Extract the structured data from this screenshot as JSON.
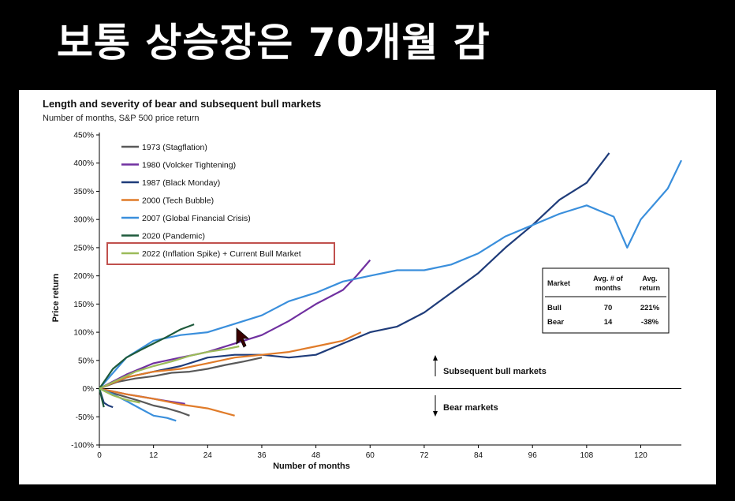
{
  "headline": "보통 상승장은 70개월 감",
  "chart_data": {
    "type": "line",
    "title": "Length and severity of bear and subsequent bull markets",
    "subtitle": "Number of months, S&P 500 price return",
    "xlabel": "Number of months",
    "ylabel": "Price return",
    "xlim": [
      0,
      129
    ],
    "ylim": [
      -100,
      450
    ],
    "xticks": [
      0,
      12,
      24,
      36,
      48,
      60,
      72,
      84,
      96,
      108,
      120
    ],
    "yticks": [
      -100,
      -50,
      0,
      50,
      100,
      150,
      200,
      250,
      300,
      350,
      400,
      450
    ],
    "ytick_labels": [
      "-100%",
      "-50%",
      "0%",
      "50%",
      "100%",
      "150%",
      "200%",
      "250%",
      "300%",
      "350%",
      "400%",
      "450%"
    ],
    "legend_position": "top-left",
    "series": [
      {
        "name": "1973 (Stagflation)",
        "color": "#595959",
        "bear": {
          "x": [
            0,
            3,
            6,
            9,
            12,
            15,
            18,
            20
          ],
          "y": [
            0,
            -8,
            -15,
            -22,
            -30,
            -35,
            -42,
            -48
          ]
        },
        "bull": {
          "x": [
            0,
            4,
            8,
            12,
            16,
            20,
            24,
            28,
            32,
            36
          ],
          "y": [
            0,
            12,
            18,
            22,
            28,
            30,
            35,
            42,
            48,
            55
          ]
        }
      },
      {
        "name": "1980 (Volcker Tightening)",
        "color": "#7030a0",
        "bear": {
          "x": [
            0,
            3,
            6,
            9,
            12,
            15,
            19
          ],
          "y": [
            0,
            -5,
            -10,
            -14,
            -18,
            -22,
            -27
          ]
        },
        "bull": {
          "x": [
            0,
            6,
            12,
            18,
            24,
            30,
            36,
            42,
            48,
            54,
            57,
            60
          ],
          "y": [
            0,
            25,
            45,
            55,
            65,
            80,
            95,
            120,
            150,
            175,
            200,
            228
          ]
        }
      },
      {
        "name": "1987 (Black Monday)",
        "color": "#1f3c7a",
        "bear": {
          "x": [
            0,
            1,
            2,
            3
          ],
          "y": [
            0,
            -25,
            -30,
            -33
          ]
        },
        "bull": {
          "x": [
            0,
            6,
            12,
            18,
            24,
            30,
            36,
            42,
            48,
            54,
            60,
            66,
            72,
            78,
            84,
            90,
            96,
            102,
            108,
            113
          ],
          "y": [
            0,
            20,
            30,
            40,
            55,
            60,
            60,
            55,
            60,
            80,
            100,
            110,
            135,
            170,
            205,
            250,
            290,
            335,
            365,
            418
          ]
        }
      },
      {
        "name": "2000 (Tech Bubble)",
        "color": "#e07b29",
        "bear": {
          "x": [
            0,
            6,
            12,
            18,
            24,
            30
          ],
          "y": [
            0,
            -10,
            -18,
            -28,
            -35,
            -48
          ]
        },
        "bull": {
          "x": [
            0,
            6,
            12,
            18,
            24,
            30,
            36,
            42,
            48,
            54,
            58
          ],
          "y": [
            0,
            20,
            30,
            35,
            45,
            55,
            60,
            65,
            75,
            85,
            100
          ]
        }
      },
      {
        "name": "2007 (Global Financial Crisis)",
        "color": "#3a8fdc",
        "bear": {
          "x": [
            0,
            3,
            6,
            9,
            12,
            15,
            17
          ],
          "y": [
            0,
            -10,
            -22,
            -35,
            -48,
            -52,
            -57
          ]
        },
        "bull": {
          "x": [
            0,
            6,
            12,
            18,
            24,
            30,
            36,
            42,
            48,
            54,
            60,
            66,
            72,
            78,
            84,
            90,
            96,
            102,
            108,
            114,
            117,
            120,
            126,
            129
          ],
          "y": [
            0,
            55,
            85,
            95,
            100,
            115,
            130,
            155,
            170,
            190,
            200,
            210,
            210,
            220,
            240,
            270,
            290,
            310,
            325,
            305,
            250,
            300,
            355,
            405
          ]
        }
      },
      {
        "name": "2020 (Pandemic)",
        "color": "#1e5a3c",
        "bear": {
          "x": [
            0,
            1
          ],
          "y": [
            0,
            -33
          ]
        },
        "bull": {
          "x": [
            0,
            3,
            6,
            9,
            12,
            15,
            18,
            21
          ],
          "y": [
            0,
            35,
            55,
            68,
            80,
            92,
            105,
            114
          ]
        }
      },
      {
        "name": "2022 (Inflation Spike) + Current Bull Market",
        "color": "#9bbb59",
        "highlight_color": "#c0504d",
        "bear": {
          "x": [
            0,
            3,
            6,
            9
          ],
          "y": [
            0,
            -12,
            -20,
            -25
          ]
        },
        "bull": {
          "x": [
            0,
            4,
            8,
            12,
            16,
            20,
            24,
            28,
            31
          ],
          "y": [
            0,
            15,
            30,
            40,
            48,
            58,
            65,
            70,
            75
          ]
        }
      }
    ],
    "annotations": [
      {
        "text": "Subsequent bull markets",
        "arrow": "up"
      },
      {
        "text": "Bear markets",
        "arrow": "down"
      }
    ],
    "table": {
      "headers": [
        "Market",
        "Avg. # of months",
        "Avg. return"
      ],
      "rows": [
        [
          "Bull",
          "70",
          "221%"
        ],
        [
          "Bear",
          "14",
          "-38%"
        ]
      ]
    }
  }
}
